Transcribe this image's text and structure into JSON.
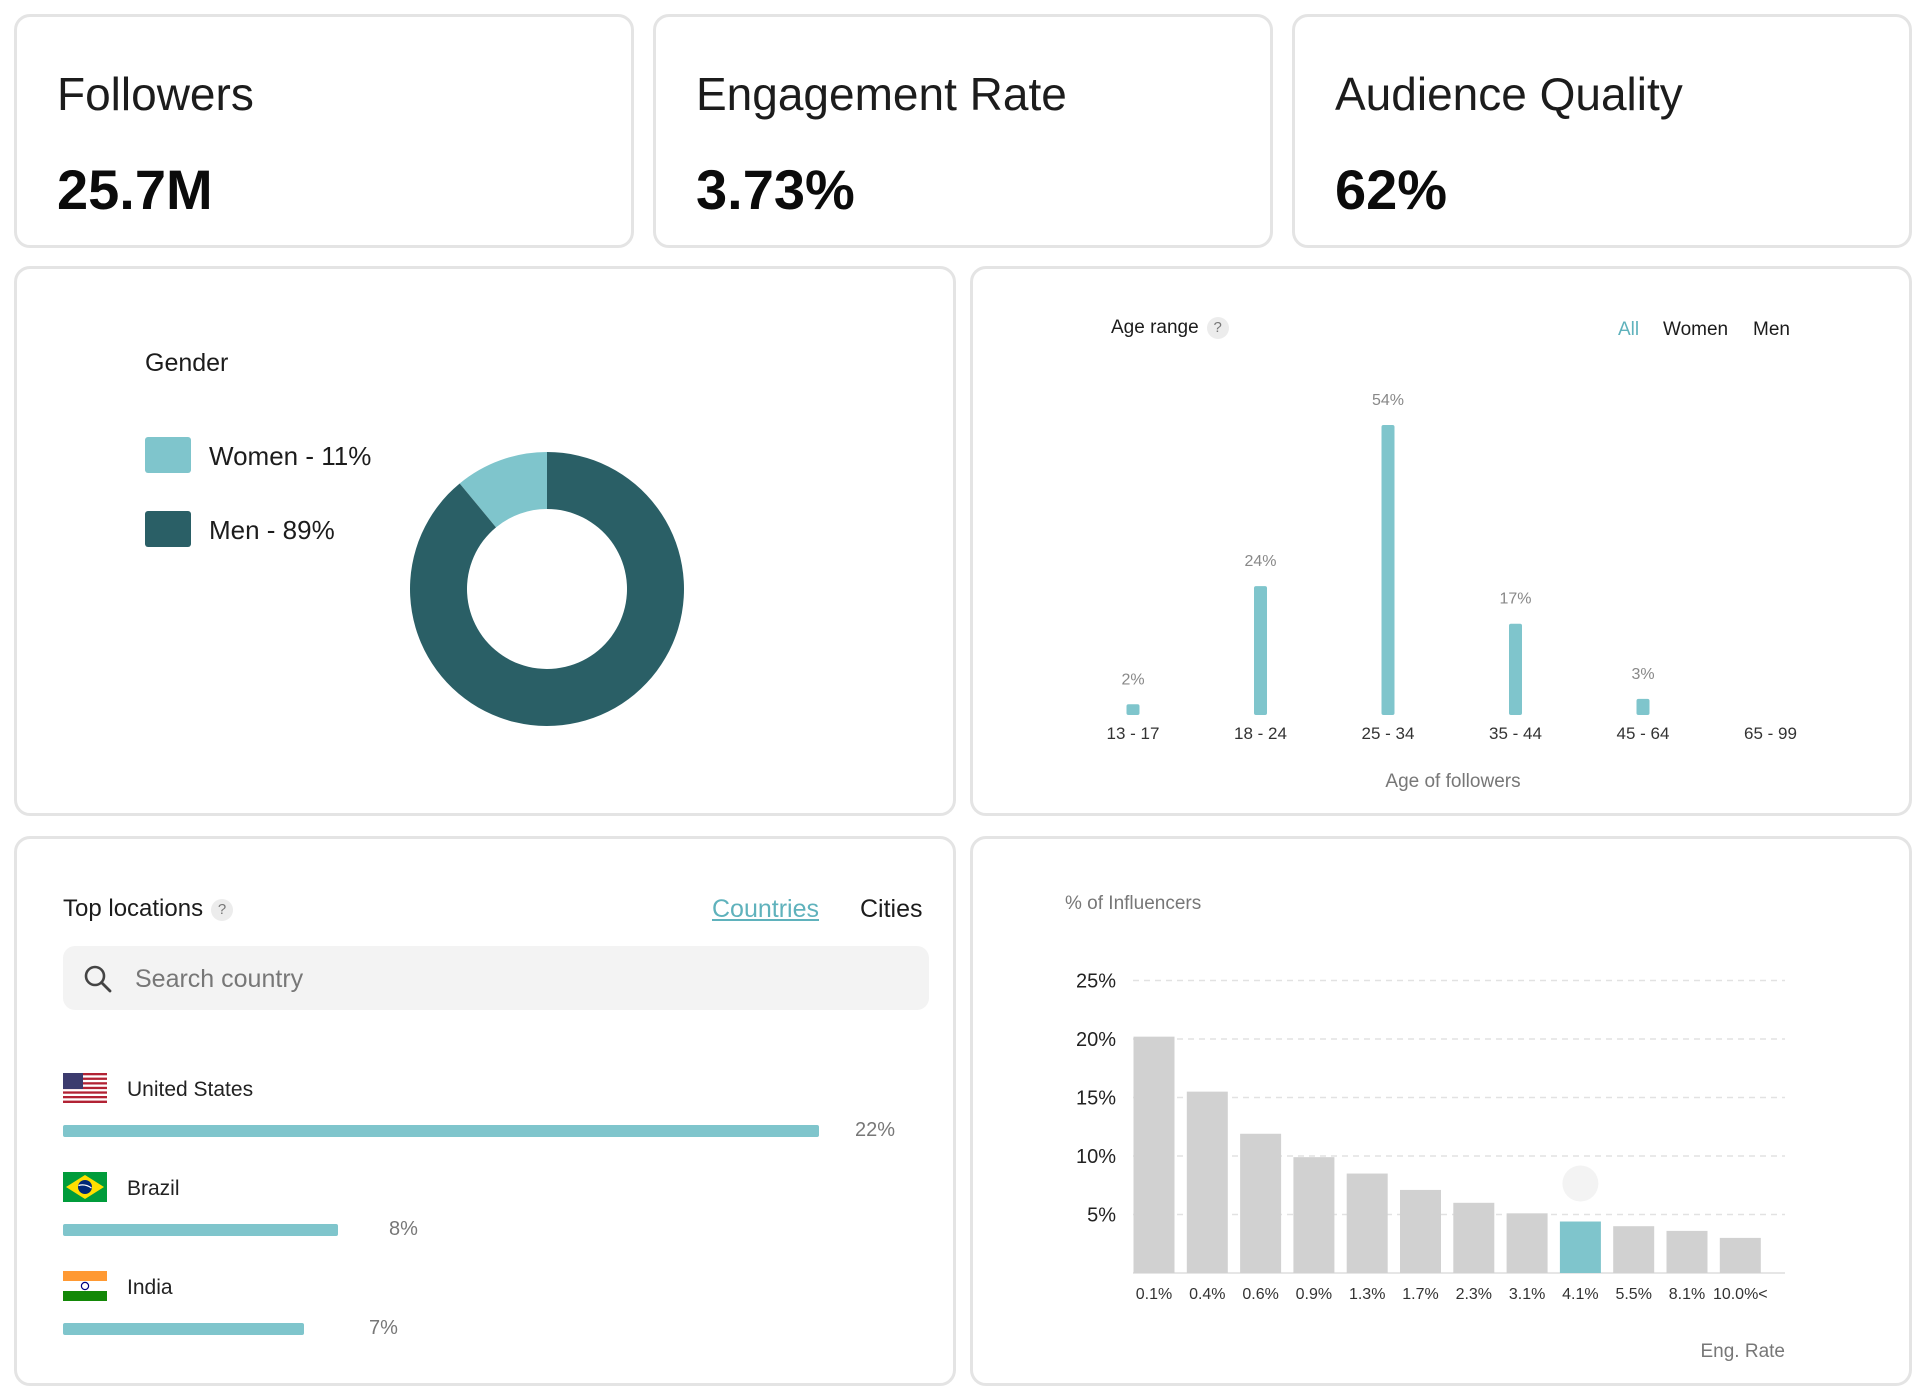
{
  "colors": {
    "accent": "#7fc5cc",
    "dark": "#2a5f66",
    "gray_bar": "#d1d1d1",
    "card_border": "#e4e4e4"
  },
  "stats": [
    {
      "label": "Followers",
      "value": "25.7M"
    },
    {
      "label": "Engagement Rate",
      "value": "3.73%"
    },
    {
      "label": "Audience Quality",
      "value": "62%"
    }
  ],
  "gender": {
    "title": "Gender",
    "legend": [
      {
        "label": "Women - 11%",
        "color": "#7fc5cc"
      },
      {
        "label": "Men - 89%",
        "color": "#2a5f66"
      }
    ],
    "chart_data": {
      "type": "pie",
      "donut": true,
      "categories": [
        "Women",
        "Men"
      ],
      "values": [
        11,
        89
      ],
      "colors": [
        "#7fc5cc",
        "#2a5f66"
      ]
    }
  },
  "age": {
    "title": "Age range",
    "help": "?",
    "filters": [
      {
        "label": "All",
        "active": true
      },
      {
        "label": "Women",
        "active": false
      },
      {
        "label": "Men",
        "active": false
      }
    ],
    "chart_data": {
      "type": "bar",
      "categories": [
        "13 - 17",
        "18 - 24",
        "25 - 34",
        "35 - 44",
        "45 - 64",
        "65 - 99"
      ],
      "values": [
        2,
        24,
        54,
        17,
        3,
        0
      ],
      "data_labels": [
        "2%",
        "24%",
        "54%",
        "17%",
        "3%",
        ""
      ],
      "xlabel": "Age of followers",
      "ylabel": "",
      "ylim": [
        0,
        54
      ],
      "grid": false
    }
  },
  "locations": {
    "title": "Top locations",
    "help": "?",
    "tabs": [
      {
        "label": "Countries",
        "active": true
      },
      {
        "label": "Cities",
        "active": false
      }
    ],
    "search_placeholder": "Search country",
    "items": [
      {
        "name": "United States",
        "value": 22,
        "label": "22%",
        "flag": "flag-us-icon"
      },
      {
        "name": "Brazil",
        "value": 8,
        "label": "8%",
        "flag": "flag-brazil-icon"
      },
      {
        "name": "India",
        "value": 7,
        "label": "7%",
        "flag": "flag-india-icon"
      }
    ]
  },
  "engagement": {
    "chart_data": {
      "type": "bar",
      "categories": [
        "0.1%",
        "0.4%",
        "0.6%",
        "0.9%",
        "1.3%",
        "1.7%",
        "2.3%",
        "3.1%",
        "4.1%",
        "5.5%",
        "8.1%",
        "10.0%<"
      ],
      "values": [
        20.2,
        15.5,
        11.9,
        9.9,
        8.5,
        7.1,
        6.0,
        5.1,
        4.4,
        4.0,
        3.6,
        3.0
      ],
      "highlight_index": 8,
      "ylabel": "% of Influencers",
      "xlabel": "Eng. Rate",
      "yticks": [
        "5%",
        "10%",
        "15%",
        "20%",
        "25%"
      ],
      "ytick_values": [
        5,
        10,
        15,
        20,
        25
      ],
      "ylim": [
        0,
        25
      ],
      "grid": true
    }
  }
}
